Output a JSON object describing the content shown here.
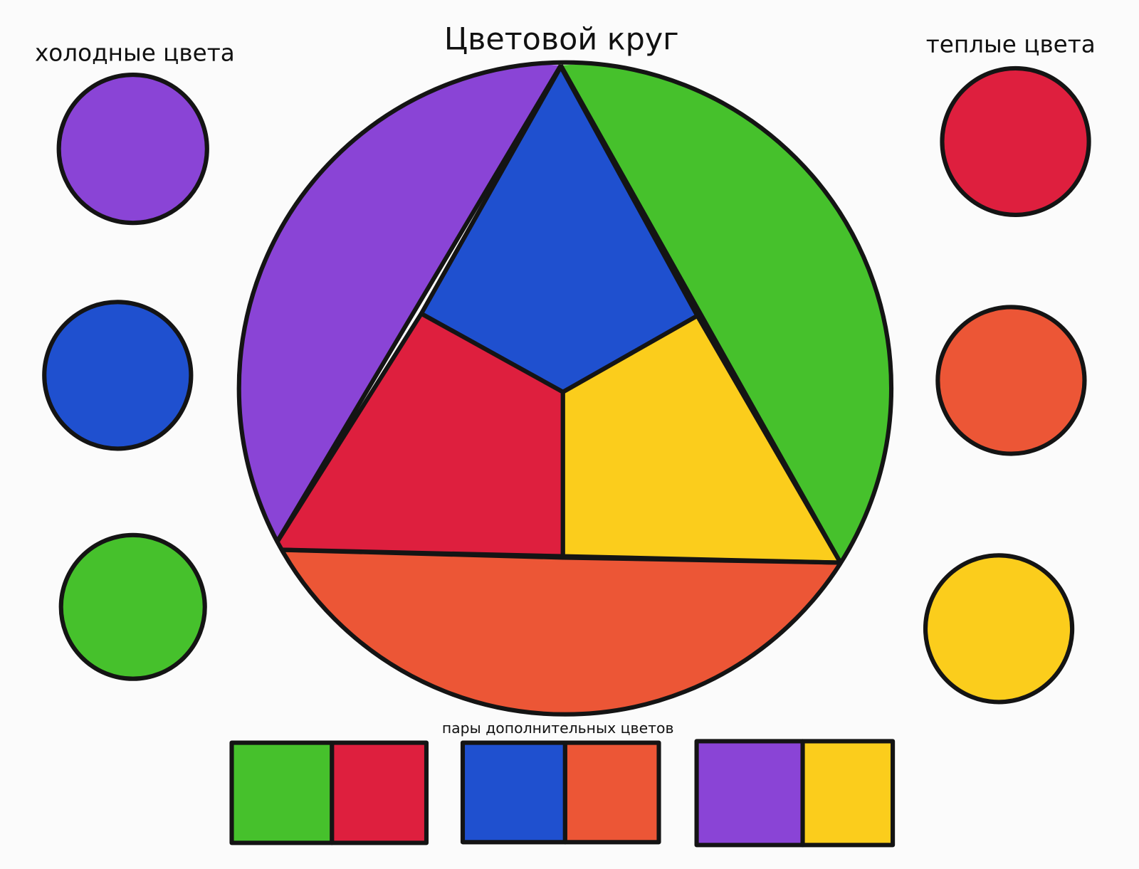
{
  "title": "Цветовой круг",
  "cold_label": "холодные цвета",
  "warm_label": "теплые цвета",
  "pairs_label": "пары дополнительных цветов",
  "colors": {
    "purple": "#8a44d6",
    "blue": "#1f50cf",
    "green": "#46c12c",
    "red": "#de1f3e",
    "orange": "#ec5636",
    "yellow": "#fbcd1c"
  },
  "cold_colors": [
    "purple",
    "blue",
    "green"
  ],
  "warm_colors": [
    "red",
    "orange",
    "yellow"
  ],
  "complementary_pairs": [
    [
      "green",
      "red"
    ],
    [
      "blue",
      "orange"
    ],
    [
      "purple",
      "yellow"
    ]
  ]
}
